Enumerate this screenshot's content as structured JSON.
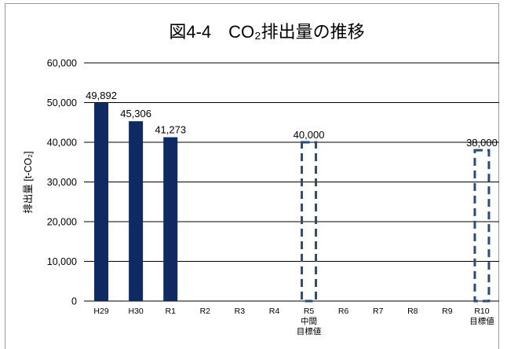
{
  "chart_data": {
    "type": "bar",
    "title": "図4-4　CO₂排出量の推移",
    "ylabel": "排出量 [t-CO₂]",
    "xlabel": "",
    "ylim": [
      0,
      60000
    ],
    "yticks": [
      "0",
      "10,000",
      "20,000",
      "30,000",
      "40,000",
      "50,000",
      "60,000"
    ],
    "ytick_values": [
      0,
      10000,
      20000,
      30000,
      40000,
      50000,
      60000
    ],
    "grid": true,
    "categories": [
      "H29",
      "H30",
      "R1",
      "R2",
      "R3",
      "R4",
      "R5",
      "R6",
      "R7",
      "R8",
      "R9",
      "R10"
    ],
    "category_sublabels": [
      "",
      "",
      "",
      "",
      "",
      "",
      "中間\n目標値",
      "",
      "",
      "",
      "",
      "目標値"
    ],
    "series": [
      {
        "values": [
          49892,
          45306,
          41273,
          null,
          null,
          null,
          null,
          null,
          null,
          null,
          null,
          null
        ],
        "data_labels": [
          "49,892",
          "45,306",
          "41,273",
          "",
          "",
          "",
          "",
          "",
          "",
          "",
          "",
          ""
        ],
        "style": "solid",
        "color": "#0f2a63"
      },
      {
        "values": [
          null,
          null,
          null,
          null,
          null,
          null,
          40000,
          null,
          null,
          null,
          null,
          38000
        ],
        "data_labels": [
          "",
          "",
          "",
          "",
          "",
          "",
          "40,000",
          "",
          "",
          "",
          "",
          "38,000"
        ],
        "style": "dashed",
        "color": "#2a4d78"
      }
    ]
  }
}
